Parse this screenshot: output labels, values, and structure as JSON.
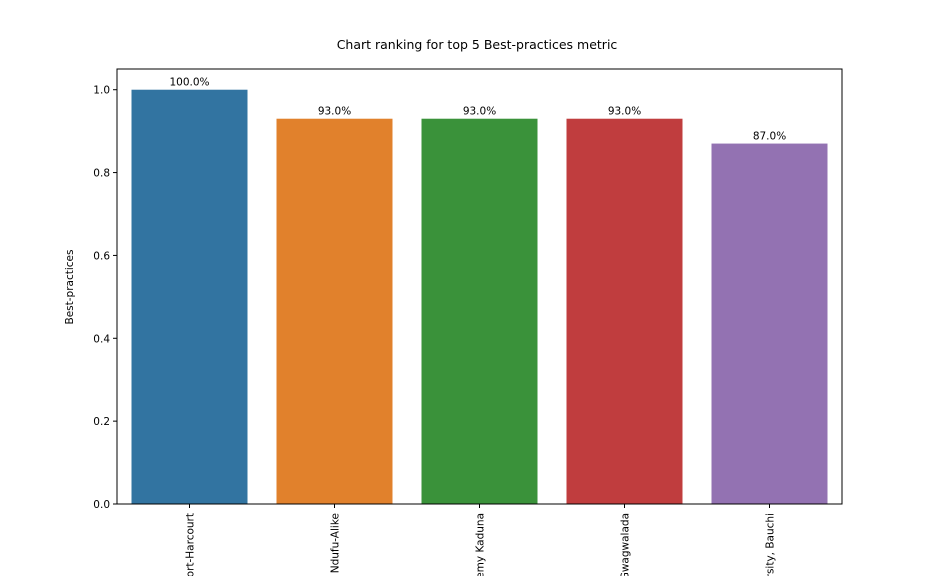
{
  "chart_data": {
    "type": "bar",
    "title": "Chart ranking for top 5 Best-practices metric",
    "xlabel": "",
    "ylabel": "Best-practices",
    "ylim": [
      0,
      1.05
    ],
    "yticks": [
      "0.0",
      "0.2",
      "0.4",
      "0.6",
      "0.8",
      "1.0"
    ],
    "grid": false,
    "categories": [
      "Port-Harcourt",
      ", Ndufu-Alike",
      "lemy Kaduna",
      "Gwagwalada",
      "ersity, Bauchi"
    ],
    "values": [
      1.0,
      0.93,
      0.93,
      0.93,
      0.87
    ],
    "data_labels": [
      "100.0%",
      "93.0%",
      "93.0%",
      "93.0%",
      "87.0%"
    ],
    "colors": [
      "#3274a1",
      "#e1812c",
      "#3a923a",
      "#c03d3e",
      "#9372b2"
    ]
  }
}
